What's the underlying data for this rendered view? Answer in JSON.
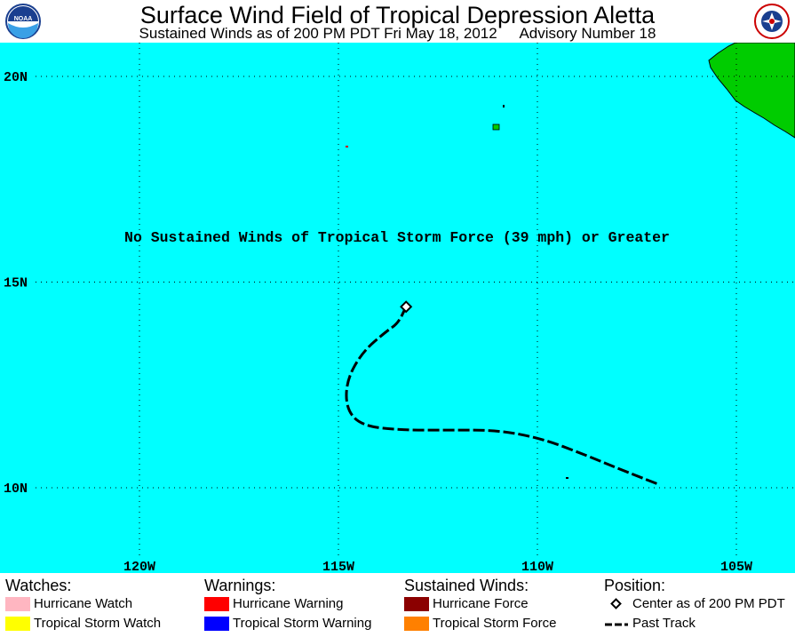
{
  "header": {
    "title": "Surface Wind Field of Tropical Depression Aletta",
    "subtitle_left": "Sustained Winds as of 200 PM PDT Fri May 18, 2012",
    "subtitle_right": "Advisory Number 18",
    "left_logo": {
      "text": "NOAA",
      "icon": "noaa-logo"
    },
    "right_logo": {
      "icon": "national-weather-service-logo"
    }
  },
  "map": {
    "colors": {
      "ocean": "#00FFFF",
      "land": "#00CC00",
      "track": "#000000"
    },
    "lat_labels": [
      "20N",
      "15N",
      "10N"
    ],
    "lon_labels": [
      "120W",
      "115W",
      "110W",
      "105W"
    ],
    "message": "No Sustained Winds of Tropical Storm Force (39 mph) or Greater",
    "center": {
      "lon": -113.3,
      "lat": 14.4
    },
    "past_track": [
      {
        "lon": -107.0,
        "lat": 10.1
      },
      {
        "lon": -107.8,
        "lat": 10.4
      },
      {
        "lon": -108.8,
        "lat": 10.8
      },
      {
        "lon": -109.9,
        "lat": 11.2
      },
      {
        "lon": -111.0,
        "lat": 11.4
      },
      {
        "lon": -112.2,
        "lat": 11.4
      },
      {
        "lon": -113.4,
        "lat": 11.4
      },
      {
        "lon": -114.4,
        "lat": 11.5
      },
      {
        "lon": -114.8,
        "lat": 11.9
      },
      {
        "lon": -114.8,
        "lat": 12.6
      },
      {
        "lon": -114.4,
        "lat": 13.3
      },
      {
        "lon": -113.8,
        "lat": 13.8
      },
      {
        "lon": -113.5,
        "lat": 14.0
      },
      {
        "lon": -113.3,
        "lat": 14.4
      }
    ]
  },
  "legend": {
    "watches": {
      "heading": "Watches:",
      "items": [
        {
          "label": "Hurricane Watch",
          "color": "#FFB6C1"
        },
        {
          "label": "Tropical Storm Watch",
          "color": "#FFFF00"
        }
      ]
    },
    "warnings": {
      "heading": "Warnings:",
      "items": [
        {
          "label": "Hurricane Warning",
          "color": "#FF0000"
        },
        {
          "label": "Tropical Storm Warning",
          "color": "#0000FF"
        }
      ]
    },
    "winds": {
      "heading": "Sustained Winds:",
      "items": [
        {
          "label": "Hurricane Force",
          "color": "#8B0000"
        },
        {
          "label": "Tropical Storm Force",
          "color": "#FF8000"
        }
      ]
    },
    "position": {
      "heading": "Position:",
      "items": [
        {
          "label": "Center as of 200 PM PDT",
          "icon": "diamond-icon"
        },
        {
          "label": "Past Track",
          "icon": "dashed-line-icon"
        }
      ]
    }
  }
}
